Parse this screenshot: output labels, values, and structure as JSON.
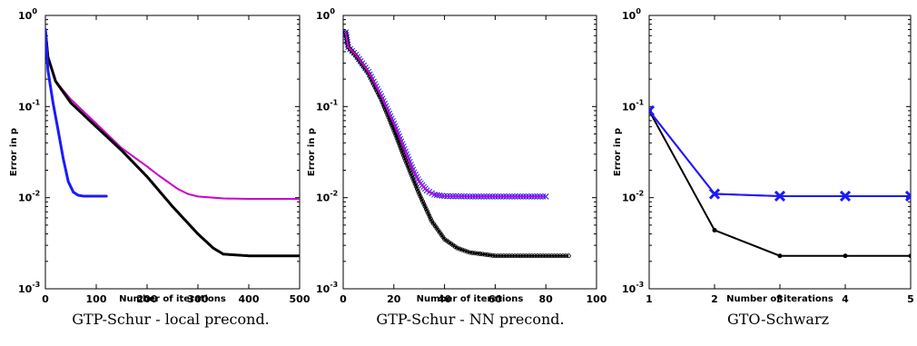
{
  "chart_data": [
    {
      "type": "line",
      "caption": "GTP-Schur - local precond.",
      "xlabel": "Number of iterations",
      "ylabel": "Error in p",
      "xlim": [
        0,
        500
      ],
      "ylim_log10": [
        -3,
        0
      ],
      "yscale": "log",
      "grid": false,
      "x_ticks": [
        "0",
        "100",
        "200",
        "300",
        "400",
        "500"
      ],
      "y_ticks": [
        {
          "base": "10",
          "exp": "-3"
        },
        {
          "base": "10",
          "exp": "-2"
        },
        {
          "base": "10",
          "exp": "-1"
        },
        {
          "base": "10",
          "exp": "0"
        }
      ],
      "series": [
        {
          "color": "#cc00cc",
          "marker": "none",
          "x": [
            0,
            5,
            20,
            50,
            100,
            150,
            200,
            220,
            240,
            260,
            280,
            300,
            350,
            400,
            500
          ],
          "y": [
            0.7,
            0.35,
            0.19,
            0.12,
            0.065,
            0.035,
            0.022,
            0.018,
            0.015,
            0.0125,
            0.011,
            0.0103,
            0.0098,
            0.0097,
            0.0097
          ]
        },
        {
          "color": "#000000",
          "marker": "dot",
          "x": [
            0,
            5,
            20,
            50,
            100,
            150,
            200,
            250,
            300,
            330,
            350,
            400,
            450,
            500
          ],
          "y": [
            0.7,
            0.35,
            0.19,
            0.11,
            0.06,
            0.033,
            0.017,
            0.008,
            0.004,
            0.0028,
            0.0024,
            0.0023,
            0.0023,
            0.0023
          ]
        },
        {
          "color": "#1a1aff",
          "marker": "dot",
          "x": [
            0,
            5,
            15,
            25,
            35,
            45,
            55,
            65,
            75,
            90,
            120
          ],
          "y": [
            0.7,
            0.25,
            0.11,
            0.055,
            0.027,
            0.015,
            0.0115,
            0.0106,
            0.0104,
            0.0104,
            0.0104
          ]
        }
      ]
    },
    {
      "type": "line",
      "caption": "GTP-Schur - NN precond.",
      "xlabel": "Number of iterations",
      "ylabel": "Error in p",
      "xlim": [
        0,
        100
      ],
      "ylim_log10": [
        -3,
        0
      ],
      "yscale": "log",
      "grid": false,
      "x_ticks": [
        "0",
        "20",
        "40",
        "60",
        "80",
        "100"
      ],
      "y_ticks": [
        {
          "base": "10",
          "exp": "-3"
        },
        {
          "base": "10",
          "exp": "-2"
        },
        {
          "base": "10",
          "exp": "-1"
        },
        {
          "base": "10",
          "exp": "0"
        }
      ],
      "series": [
        {
          "color": "#1a1aff",
          "marker": "x",
          "x": [
            1,
            2,
            5,
            10,
            15,
            20,
            25,
            28,
            30,
            33,
            36,
            40,
            50,
            60,
            70,
            80
          ],
          "y": [
            0.65,
            0.45,
            0.37,
            0.24,
            0.13,
            0.065,
            0.03,
            0.019,
            0.015,
            0.012,
            0.0108,
            0.0104,
            0.0103,
            0.0103,
            0.0103,
            0.0103
          ]
        },
        {
          "color": "#000000",
          "marker": "circle",
          "x": [
            1,
            2,
            5,
            10,
            15,
            20,
            25,
            30,
            35,
            40,
            45,
            50,
            55,
            60,
            70,
            80,
            89
          ],
          "y": [
            0.65,
            0.45,
            0.36,
            0.23,
            0.12,
            0.055,
            0.024,
            0.011,
            0.0055,
            0.0035,
            0.0028,
            0.0025,
            0.0024,
            0.0023,
            0.0023,
            0.0023,
            0.0023
          ]
        },
        {
          "color": "#cc00cc",
          "marker": "none",
          "x": [
            1,
            2,
            5,
            10,
            15,
            20,
            25,
            28,
            30,
            33,
            36,
            40,
            50,
            60,
            70,
            80
          ],
          "y": [
            0.65,
            0.45,
            0.37,
            0.24,
            0.13,
            0.065,
            0.03,
            0.019,
            0.015,
            0.012,
            0.0108,
            0.0104,
            0.0103,
            0.0103,
            0.0103,
            0.0103
          ]
        }
      ]
    },
    {
      "type": "line",
      "caption": "GTO-Schwarz",
      "xlabel": "Number of iterations",
      "ylabel": "Error in p",
      "xlim": [
        1,
        5
      ],
      "ylim_log10": [
        -3,
        0
      ],
      "yscale": "log",
      "grid": false,
      "x_ticks": [
        "1",
        "2",
        "3",
        "4",
        "5"
      ],
      "y_ticks": [
        {
          "base": "10",
          "exp": "-3"
        },
        {
          "base": "10",
          "exp": "-2"
        },
        {
          "base": "10",
          "exp": "-1"
        },
        {
          "base": "10",
          "exp": "0"
        }
      ],
      "series": [
        {
          "color": "#000000",
          "marker": "dot",
          "x": [
            1,
            2,
            3,
            4,
            5
          ],
          "y": [
            0.09,
            0.0044,
            0.0023,
            0.0023,
            0.0023
          ]
        },
        {
          "color": "#cc00cc",
          "marker": "none",
          "x": [
            1,
            2,
            3,
            4,
            5
          ],
          "y": [
            0.09,
            0.011,
            0.0104,
            0.0104,
            0.0104
          ]
        },
        {
          "color": "#1a1aff",
          "marker": "x",
          "x": [
            1,
            2,
            3,
            4,
            5
          ],
          "y": [
            0.09,
            0.011,
            0.0104,
            0.0104,
            0.0104
          ]
        }
      ]
    }
  ]
}
